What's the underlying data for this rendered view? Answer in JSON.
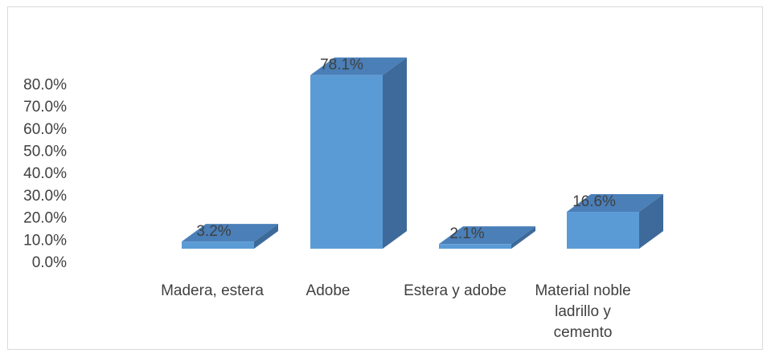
{
  "chart_data": {
    "type": "bar",
    "style": "3d-column",
    "categories": [
      [
        "Madera, estera"
      ],
      [
        "Adobe"
      ],
      [
        "Estera y adobe"
      ],
      [
        "Material noble",
        "ladrillo y",
        "cemento"
      ]
    ],
    "values": [
      3.2,
      78.1,
      2.1,
      16.6
    ],
    "data_labels": [
      "3.2%",
      "78.1%",
      "2.1%",
      "16.6%"
    ],
    "y_ticks": [
      "0.0%",
      "10.0%",
      "20.0%",
      "30.0%",
      "40.0%",
      "50.0%",
      "60.0%",
      "70.0%",
      "80.0%"
    ],
    "ylim": [
      0,
      80
    ],
    "grid": false,
    "legend": "none",
    "colors": {
      "front": "#5b9bd5",
      "top": "#4a7fb8",
      "side": "#3d6a9a",
      "text": "#404040"
    }
  }
}
